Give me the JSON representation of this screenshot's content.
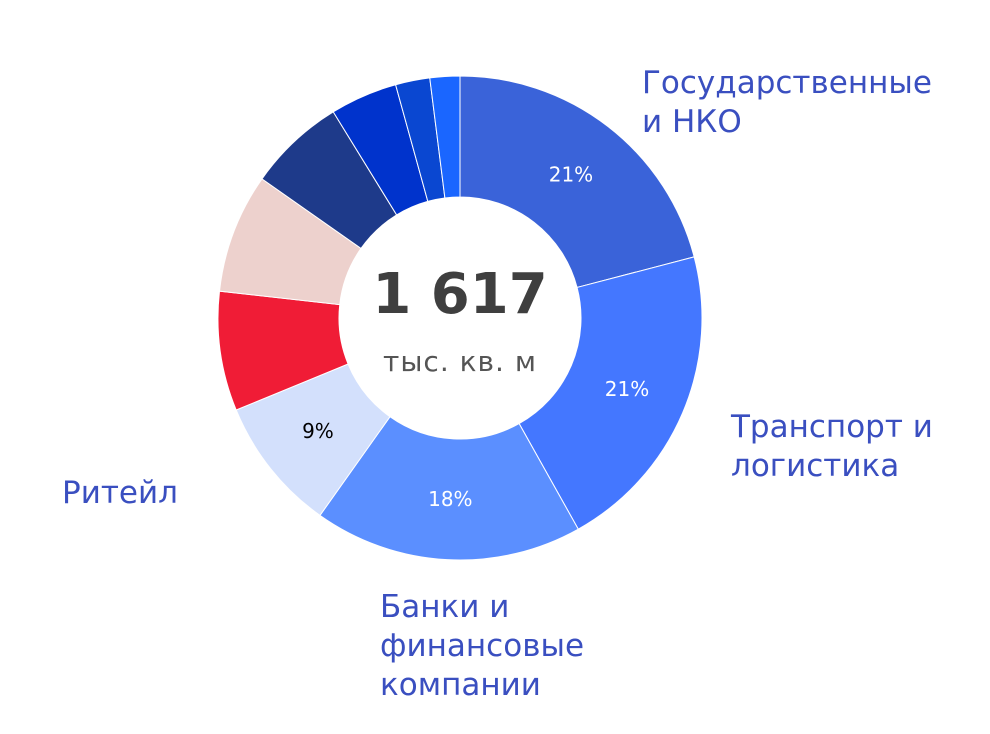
{
  "chart_data": {
    "type": "pie",
    "donut": true,
    "center": {
      "total": "1 617",
      "unit": "тыс. кв. м"
    },
    "slices": [
      {
        "label": "Государственные и НКО",
        "value": 21,
        "percent_label": "21%",
        "color": "#3a63d9",
        "label_color": "#ffffff"
      },
      {
        "label": "Транспорт и логистика",
        "value": 21,
        "percent_label": "21%",
        "color": "#4477ff",
        "label_color": "#ffffff"
      },
      {
        "label": "Банки и финансовые компании",
        "value": 18,
        "percent_label": "18%",
        "color": "#5b8fff",
        "label_color": "#ffffff"
      },
      {
        "label": "Ритейл",
        "value": 9,
        "percent_label": "9%",
        "color": "#d3e0fc",
        "label_color": "#000000"
      },
      {
        "label": "",
        "value": 8,
        "percent_label": "",
        "color": "#f01c36",
        "label_color": "#ffffff"
      },
      {
        "label": "",
        "value": 8,
        "percent_label": "",
        "color": "#edd1cd",
        "label_color": "#000000"
      },
      {
        "label": "",
        "value": 6.5,
        "percent_label": "",
        "color": "#1e3a8a",
        "label_color": "#ffffff"
      },
      {
        "label": "",
        "value": 4.5,
        "percent_label": "",
        "color": "#0033cc",
        "label_color": "#ffffff"
      },
      {
        "label": "",
        "value": 2.3,
        "percent_label": "",
        "color": "#0a47d1",
        "label_color": "#ffffff"
      },
      {
        "label": "",
        "value": 2,
        "percent_label": "",
        "color": "#1a66ff",
        "label_color": "#ffffff"
      }
    ]
  },
  "labels": {
    "gov_line1": "Государственные",
    "gov_line2": "и НКО",
    "transport_line1": "Транспорт и",
    "transport_line2": "логистика",
    "banks_line1": "Банки и",
    "banks_line2": "финансовые",
    "banks_line3": "компании",
    "retail": "Ритейл"
  }
}
